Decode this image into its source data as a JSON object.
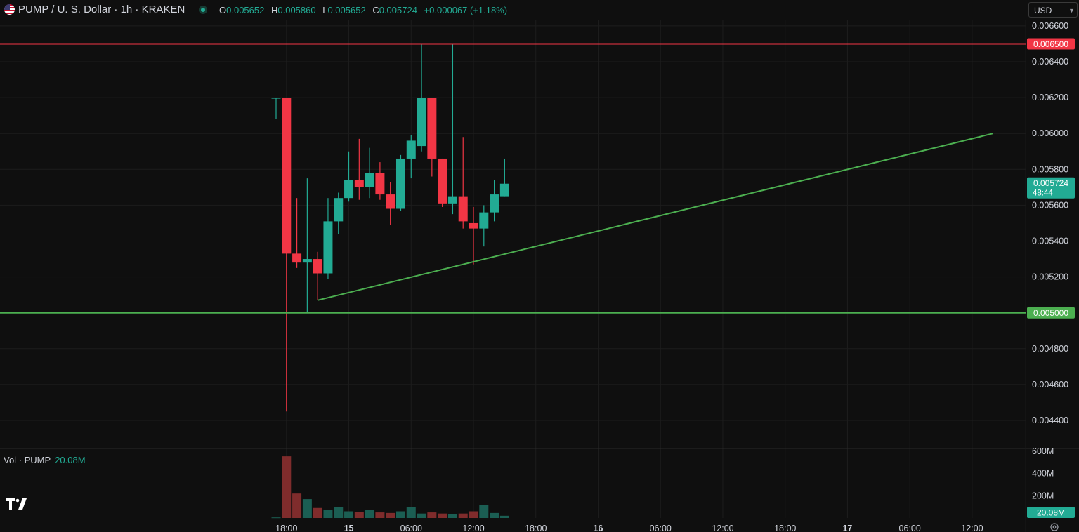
{
  "header": {
    "symbol_title": "PUMP / U. S. Dollar · 1h · KRAKEN",
    "ohlc": [
      {
        "k": "O",
        "v": "0.005652"
      },
      {
        "k": "H",
        "v": "0.005860"
      },
      {
        "k": "L",
        "v": "0.005652"
      },
      {
        "k": "C",
        "v": "0.005724"
      }
    ],
    "change": "+0.000067 (+1.18%)",
    "currency": "USD"
  },
  "volume_legend": {
    "label": "Vol · PUMP",
    "value": "20.08M"
  },
  "colors": {
    "up": "#22ab94",
    "down": "#f23645",
    "up_vol": "#1b5e53",
    "down_vol": "#7f2c2c",
    "resistance": "#f23645",
    "support": "#4caf50",
    "trend": "#4caf50",
    "bg": "#0f0f0f",
    "grid": "#1d1d1d"
  },
  "chart_data": {
    "type": "candlestick",
    "price_axis": {
      "min": 0.0043,
      "max": 0.00667,
      "ticks": [
        "0.006600",
        "0.006400",
        "0.006200",
        "0.006000",
        "0.005800",
        "0.005600",
        "0.005400",
        "0.005200",
        "0.004800",
        "0.004600",
        "0.004400"
      ],
      "tick_values": [
        0.0066,
        0.0064,
        0.0062,
        0.006,
        0.0058,
        0.0056,
        0.0054,
        0.0052,
        0.0048,
        0.0046,
        0.0044
      ]
    },
    "time_axis": {
      "start": "14 17:00",
      "end": "17 14:00",
      "interval": "1h",
      "ticks": [
        {
          "label": "18:00",
          "t": "14 18:00",
          "bold": false
        },
        {
          "label": "15",
          "t": "15 00:00",
          "bold": true
        },
        {
          "label": "06:00",
          "t": "15 06:00",
          "bold": false
        },
        {
          "label": "12:00",
          "t": "15 12:00",
          "bold": false
        },
        {
          "label": "18:00",
          "t": "15 18:00",
          "bold": false
        },
        {
          "label": "16",
          "t": "16 00:00",
          "bold": true
        },
        {
          "label": "06:00",
          "t": "16 06:00",
          "bold": false
        },
        {
          "label": "12:00",
          "t": "16 12:00",
          "bold": false
        },
        {
          "label": "18:00",
          "t": "16 18:00",
          "bold": false
        },
        {
          "label": "17",
          "t": "17 00:00",
          "bold": true
        },
        {
          "label": "06:00",
          "t": "17 06:00",
          "bold": false
        },
        {
          "label": "12:00",
          "t": "17 12:00",
          "bold": false
        }
      ]
    },
    "candles": [
      {
        "t": "14 17:00",
        "o": 0.0062,
        "h": 0.0062,
        "l": 0.00608,
        "c": 0.0062
      },
      {
        "t": "14 18:00",
        "o": 0.0062,
        "h": 0.0062,
        "l": 0.00445,
        "c": 0.00533
      },
      {
        "t": "14 19:00",
        "o": 0.00533,
        "h": 0.00564,
        "l": 0.00525,
        "c": 0.00528
      },
      {
        "t": "14 20:00",
        "o": 0.00528,
        "h": 0.00575,
        "l": 0.005,
        "c": 0.0053
      },
      {
        "t": "14 21:00",
        "o": 0.0053,
        "h": 0.00534,
        "l": 0.00507,
        "c": 0.00522
      },
      {
        "t": "14 22:00",
        "o": 0.00522,
        "h": 0.00564,
        "l": 0.00519,
        "c": 0.00551
      },
      {
        "t": "14 23:00",
        "o": 0.00551,
        "h": 0.00567,
        "l": 0.00544,
        "c": 0.00564
      },
      {
        "t": "15 00:00",
        "o": 0.00564,
        "h": 0.0059,
        "l": 0.00562,
        "c": 0.00574
      },
      {
        "t": "15 01:00",
        "o": 0.00574,
        "h": 0.00597,
        "l": 0.00563,
        "c": 0.0057
      },
      {
        "t": "15 02:00",
        "o": 0.0057,
        "h": 0.00592,
        "l": 0.00564,
        "c": 0.00578
      },
      {
        "t": "15 03:00",
        "o": 0.00578,
        "h": 0.00584,
        "l": 0.00563,
        "c": 0.00566
      },
      {
        "t": "15 04:00",
        "o": 0.00566,
        "h": 0.00573,
        "l": 0.00549,
        "c": 0.00558
      },
      {
        "t": "15 05:00",
        "o": 0.00558,
        "h": 0.00588,
        "l": 0.00557,
        "c": 0.00586
      },
      {
        "t": "15 06:00",
        "o": 0.00586,
        "h": 0.00599,
        "l": 0.00575,
        "c": 0.00596
      },
      {
        "t": "15 07:00",
        "o": 0.00593,
        "h": 0.0065,
        "l": 0.0059,
        "c": 0.0062
      },
      {
        "t": "15 08:00",
        "o": 0.0062,
        "h": 0.0062,
        "l": 0.00576,
        "c": 0.00586
      },
      {
        "t": "15 09:00",
        "o": 0.00586,
        "h": 0.00586,
        "l": 0.00559,
        "c": 0.00561
      },
      {
        "t": "15 10:00",
        "o": 0.00561,
        "h": 0.0065,
        "l": 0.00555,
        "c": 0.00565
      },
      {
        "t": "15 11:00",
        "o": 0.00565,
        "h": 0.00598,
        "l": 0.00547,
        "c": 0.00551
      },
      {
        "t": "15 12:00",
        "o": 0.0055,
        "h": 0.00559,
        "l": 0.00527,
        "c": 0.00547
      },
      {
        "t": "15 13:00",
        "o": 0.00547,
        "h": 0.0056,
        "l": 0.00537,
        "c": 0.00556
      },
      {
        "t": "15 14:00",
        "o": 0.00556,
        "h": 0.00574,
        "l": 0.00551,
        "c": 0.00566
      },
      {
        "t": "15 15:00",
        "o": 0.00565,
        "h": 0.00586,
        "l": 0.00565,
        "c": 0.00572
      }
    ],
    "volume_axis": {
      "min": 0,
      "max": 600,
      "unit": "M",
      "ticks": [
        "600M",
        "400M",
        "200M"
      ],
      "tick_values": [
        600,
        400,
        200
      ]
    },
    "volume": [
      5,
      555,
      220,
      170,
      90,
      70,
      100,
      60,
      55,
      70,
      50,
      45,
      60,
      100,
      40,
      50,
      40,
      35,
      40,
      60,
      115,
      45,
      20
    ],
    "horizontal_lines": [
      {
        "price": 0.0065,
        "label": "0.006500",
        "color_key": "resistance"
      },
      {
        "price": 0.005,
        "label": "0.005000",
        "color_key": "support"
      }
    ],
    "trendline": {
      "from": {
        "t": "14 21:00",
        "price": 0.00507
      },
      "to": {
        "t": "17 14:00",
        "price": 0.006
      }
    },
    "last_price": {
      "price": 0.005724,
      "label": "0.005724",
      "countdown": "48:44"
    },
    "last_volume_label": "20.08M"
  }
}
